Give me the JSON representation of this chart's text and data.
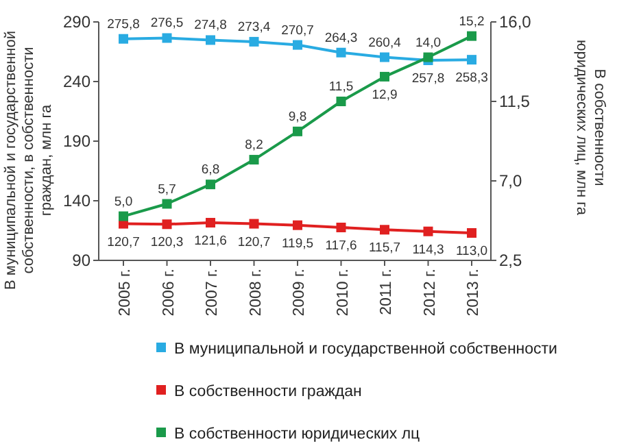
{
  "chart_data": {
    "type": "line",
    "categories": [
      "2005 г.",
      "2006 г.",
      "2007 г.",
      "2008 г.",
      "2009 г.",
      "2010 г.",
      "2011 г.",
      "2012 г.",
      "2013 г."
    ],
    "ylabel": "В муниципальной и государственной собственности, в собственности граждан, млн га",
    "y2label": "В собственности юридических лиц, млн га",
    "ylim": [
      90,
      290
    ],
    "yticks": [
      90,
      140,
      190,
      240,
      290
    ],
    "y2lim": [
      2.5,
      16
    ],
    "y2ticks": [
      {
        "value": 2.5,
        "label": "2,5"
      },
      {
        "value": 7,
        "label": "7,0"
      },
      {
        "value": 11.5,
        "label": "11,5"
      },
      {
        "value": 16,
        "label": "16,0"
      }
    ],
    "marker": "square",
    "legend": "bottom",
    "series": [
      {
        "name": "В муниципальной и государственной собственности",
        "color": "#29abe2",
        "values": [
          275.8,
          276.5,
          274.8,
          273.4,
          270.7,
          264.3,
          260.4,
          257.8,
          258.3
        ],
        "value_labels": [
          "275,8",
          "276,5",
          "274,8",
          "273,4",
          "270,7",
          "264,3",
          "260,4",
          "257,8",
          "258,3"
        ]
      },
      {
        "name": "В собственности граждан",
        "color": "#e02020",
        "values": [
          120.7,
          120.3,
          121.6,
          120.7,
          119.5,
          117.6,
          115.7,
          114.3,
          113.0
        ],
        "value_labels": [
          "120,7",
          "120,3",
          "121,6",
          "120,7",
          "119,5",
          "117,6",
          "115,7",
          "114,3",
          "113,0"
        ]
      },
      {
        "name": "В собственности юридических лц",
        "color": "#1a9a4a",
        "axis": "y2",
        "values": [
          5.0,
          5.7,
          6.8,
          8.2,
          9.8,
          11.5,
          12.9,
          14.0,
          15.2
        ],
        "value_labels": [
          "5,0",
          "5,7",
          "6,8",
          "8,2",
          "9,8",
          "11,5",
          "12,9",
          "14,0",
          "15,2"
        ]
      }
    ]
  }
}
